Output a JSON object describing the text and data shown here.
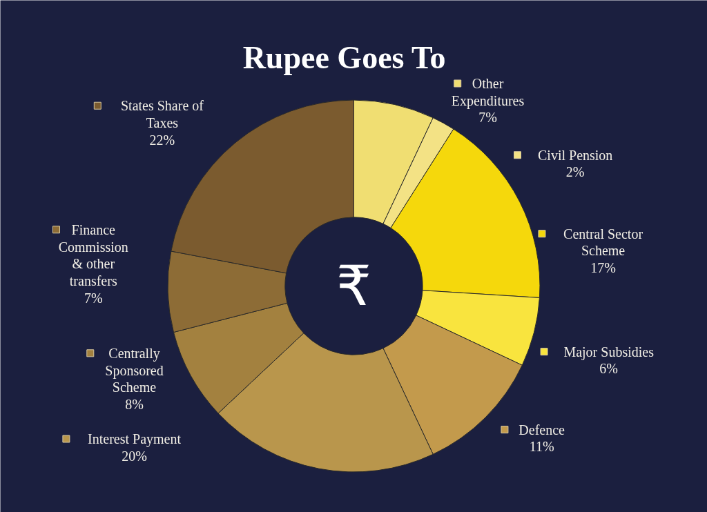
{
  "chart_data": {
    "type": "donut",
    "title": "Rupee Goes To",
    "categories": [
      "Other Expenditures",
      "Civil Pension",
      "Central Sector Scheme",
      "Major Subsidies",
      "Defence",
      "Interest Payment",
      "Centrally Sponsored Scheme",
      "Finance Commission & other transfers",
      "States Share of Taxes"
    ],
    "values": [
      7,
      2,
      17,
      6,
      11,
      20,
      8,
      7,
      22
    ],
    "value_labels": [
      "7%",
      "2%",
      "17%",
      "6%",
      "11%",
      "20%",
      "8%",
      "7%",
      "22%"
    ],
    "colors": [
      "#f0de72",
      "#f3e285",
      "#f5d80c",
      "#f9e43e",
      "#c39a4c",
      "#b9964c",
      "#a3813f",
      "#8d6c36",
      "#7b5b2f"
    ],
    "legend": "right",
    "annotations": [
      "₹"
    ]
  }
}
